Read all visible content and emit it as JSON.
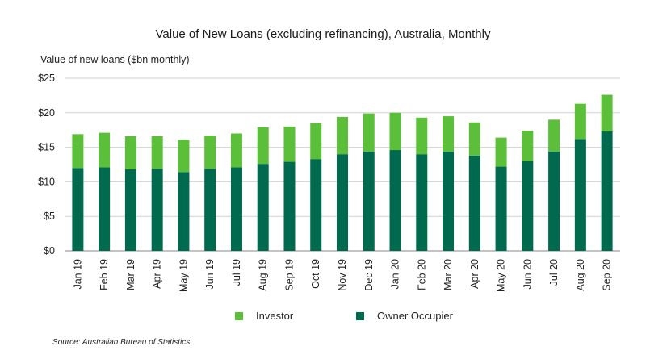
{
  "chart_data": {
    "type": "bar",
    "stacked": true,
    "title": "Value of New Loans (excluding refinancing), Australia, Monthly",
    "ylabel": "Value of new loans ($bn monthly)",
    "xlabel": "",
    "ylim": [
      0,
      25
    ],
    "yticks": [
      0,
      5,
      10,
      15,
      20,
      25
    ],
    "ytick_labels": [
      "$0",
      "$5",
      "$10",
      "$15",
      "$20",
      "$25"
    ],
    "grid": "horizontal",
    "legend_position": "bottom",
    "categories": [
      "Jan 19",
      "Feb 19",
      "Mar 19",
      "Apr 19",
      "May 19",
      "Jun 19",
      "Jul 19",
      "Aug 19",
      "Sep 19",
      "Oct 19",
      "Nov 19",
      "Dec 19",
      "Jan 20",
      "Feb 20",
      "Mar 20",
      "Apr 20",
      "May 20",
      "Jun 20",
      "Jul 20",
      "Aug 20",
      "Sep 20"
    ],
    "series": [
      {
        "name": "Owner Occupier",
        "color": "#006a4e",
        "values": [
          12.0,
          12.1,
          11.8,
          11.9,
          11.4,
          11.9,
          12.1,
          12.6,
          12.9,
          13.3,
          14.0,
          14.4,
          14.6,
          14.0,
          14.4,
          13.8,
          12.2,
          13.0,
          14.4,
          16.2,
          17.3
        ]
      },
      {
        "name": "Investor",
        "color": "#5bbf3a",
        "values": [
          4.9,
          5.0,
          4.8,
          4.7,
          4.7,
          4.8,
          4.9,
          5.3,
          5.1,
          5.2,
          5.4,
          5.5,
          5.4,
          5.3,
          5.1,
          4.8,
          4.2,
          4.4,
          4.6,
          5.1,
          5.3
        ]
      }
    ]
  },
  "legend": {
    "investor_label": "Investor",
    "owner_label": "Owner Occupier",
    "investor_color": "#5bbf3a",
    "owner_color": "#006a4e"
  },
  "source": "Source:  Australian Bureau of Statistics"
}
